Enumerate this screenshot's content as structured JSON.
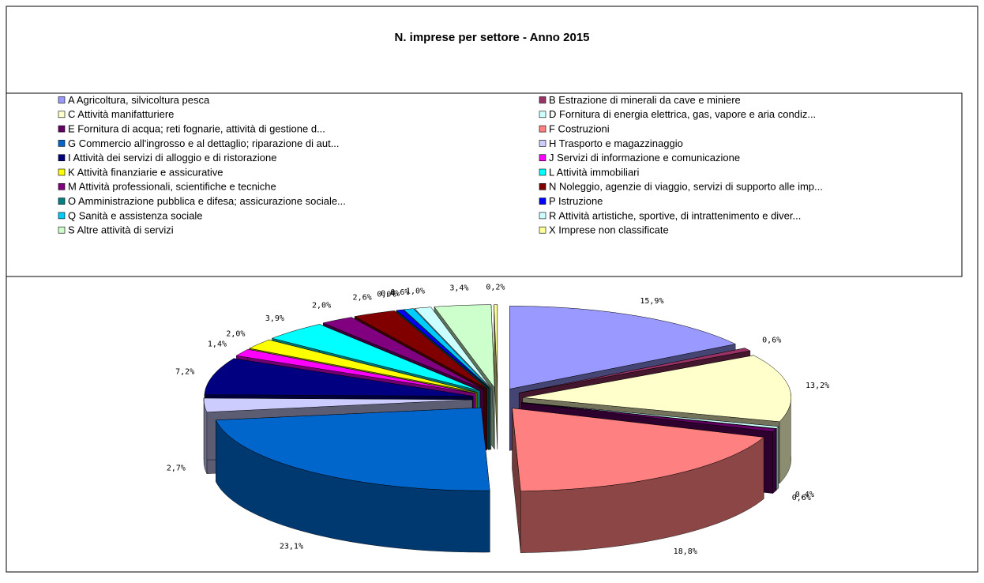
{
  "chart_data": {
    "type": "pie",
    "title": "N. imprese per settore - Anno 2015",
    "categories": [
      "A Agricoltura, silvicoltura pesca",
      "B Estrazione di minerali da cave e miniere",
      "C Attività manifatturiere",
      "D Fornitura di energia elettrica, gas, vapore e aria condiz...",
      "E Fornitura di acqua; reti fognarie, attività di gestione d...",
      "F Costruzioni",
      "G Commercio all'ingrosso e al dettaglio; riparazione di aut...",
      "H Trasporto e magazzinaggio",
      "I Attività dei servizi di alloggio e di ristorazione",
      "J Servizi di informazione e comunicazione",
      "K Attività finanziarie e assicurative",
      "L Attività immobiliari",
      "M Attività professionali, scientifiche e tecniche",
      "N Noleggio, agenzie di viaggio, servizi di supporto alle imp...",
      "O Amministrazione pubblica e difesa; assicurazione sociale...",
      "P Istruzione",
      "Q Sanità e assistenza sociale",
      "R Attività artistiche, sportive, di intrattenimento e diver...",
      "S Altre attività di servizi",
      "X Imprese non classificate"
    ],
    "values": [
      15.9,
      0.6,
      13.2,
      0.4,
      0.6,
      18.8,
      23.1,
      2.7,
      7.2,
      1.4,
      2.0,
      3.9,
      2.0,
      2.6,
      0.0,
      0.4,
      0.6,
      1.0,
      3.4,
      0.2
    ],
    "value_labels": [
      "15,9%",
      "0,6%",
      "13,2%",
      "0,4%",
      "0,6%",
      "18,8%",
      "23,1%",
      "2,7%",
      "7,2%",
      "1,4%",
      "2,0%",
      "3,9%",
      "2,0%",
      "2,6%",
      "0,0%",
      "0,4%",
      "0,6%",
      "1,0%",
      "3,4%",
      "0,2%"
    ],
    "colors": [
      "#9999ff",
      "#993366",
      "#ffffcc",
      "#ccffff",
      "#660066",
      "#ff8080",
      "#0066cc",
      "#ccccff",
      "#000080",
      "#ff00ff",
      "#ffff00",
      "#00ffff",
      "#800080",
      "#800000",
      "#008080",
      "#0000ff",
      "#00ccff",
      "#ccffff",
      "#ccffcc",
      "#ffff99"
    ]
  }
}
